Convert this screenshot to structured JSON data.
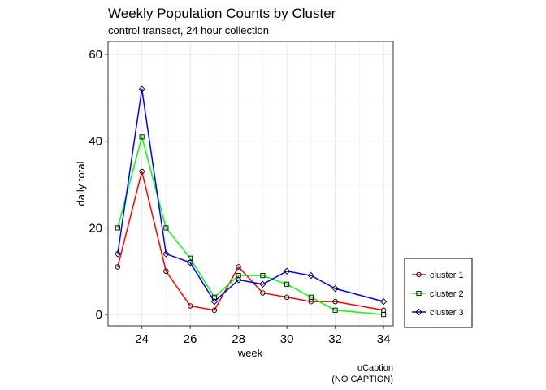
{
  "chart_data": {
    "type": "line",
    "title": "Weekly Population Counts by Cluster",
    "subtitle": "control transect, 24 hour collection",
    "xlabel": "week",
    "ylabel": "daily total",
    "caption_line1": "oCaption",
    "caption_line2": "(NO CAPTION)",
    "xlim": [
      22.6,
      34.4
    ],
    "ylim": [
      -2.6,
      63
    ],
    "x_ticks": [
      24,
      26,
      28,
      30,
      32,
      34
    ],
    "y_ticks": [
      0,
      20,
      40,
      60
    ],
    "grid": true,
    "legend_position": "right-bottom",
    "series": [
      {
        "name": "cluster 1",
        "color": "#ff0000",
        "marker": "circle",
        "x": [
          23,
          24,
          25,
          26,
          27,
          28,
          29,
          30,
          31,
          32,
          34
        ],
        "y": [
          11,
          33,
          10,
          2,
          1,
          11,
          5,
          4,
          3,
          3,
          1
        ]
      },
      {
        "name": "cluster 2",
        "color": "#00ff00",
        "marker": "square",
        "x": [
          23,
          24,
          25,
          26,
          27,
          28,
          29,
          30,
          31,
          32,
          34
        ],
        "y": [
          20,
          41,
          20,
          13,
          4,
          9,
          9,
          7,
          4,
          1,
          0
        ]
      },
      {
        "name": "cluster 3",
        "color": "#0000ff",
        "marker": "diamond",
        "x": [
          23,
          24,
          25,
          26,
          27,
          28,
          29,
          30,
          31,
          32,
          34
        ],
        "y": [
          14,
          52,
          14,
          12,
          3,
          8,
          7,
          10,
          9,
          6,
          3
        ]
      }
    ]
  }
}
